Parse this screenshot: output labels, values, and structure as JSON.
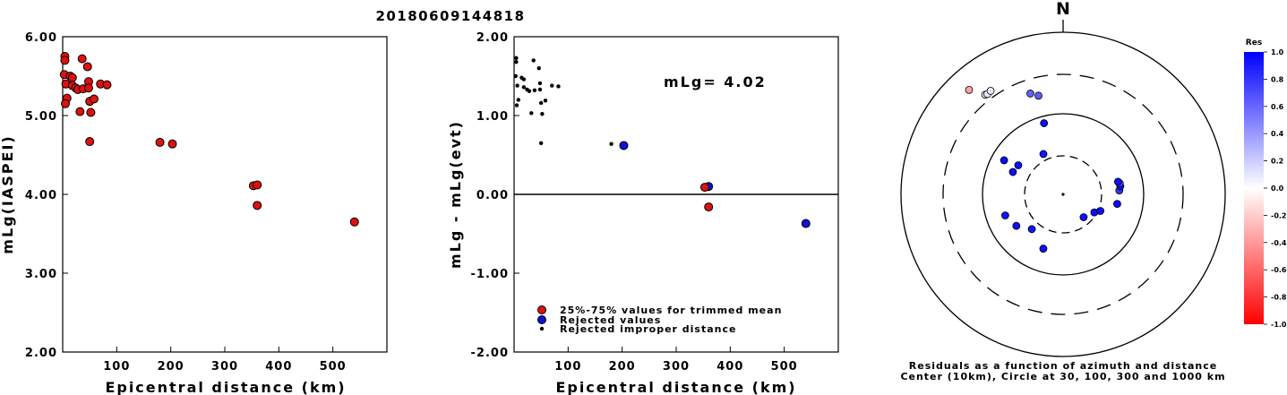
{
  "title": "20180609144818",
  "colors": {
    "trimmed": "#dd1111",
    "rejected": "#1010dd",
    "improper": "#000000"
  },
  "chart_data": [
    {
      "id": "left",
      "type": "scatter",
      "xlabel": "Epicentral distance (km)",
      "ylabel": "mLg(IASPEI)",
      "xlim": [
        0,
        600
      ],
      "ylim": [
        2.0,
        6.0
      ],
      "xticks": [
        "100",
        "200",
        "300",
        "400",
        "500"
      ],
      "yticks": [
        "2.00",
        "3.00",
        "4.00",
        "5.00",
        "6.00"
      ],
      "points": [
        {
          "x": 4,
          "y": 5.75
        },
        {
          "x": 4,
          "y": 5.7
        },
        {
          "x": 3,
          "y": 5.52
        },
        {
          "x": 6,
          "y": 5.4
        },
        {
          "x": 8,
          "y": 5.22
        },
        {
          "x": 5,
          "y": 5.15
        },
        {
          "x": 14,
          "y": 5.5
        },
        {
          "x": 18,
          "y": 5.48
        },
        {
          "x": 18,
          "y": 5.38
        },
        {
          "x": 24,
          "y": 5.35
        },
        {
          "x": 28,
          "y": 5.33
        },
        {
          "x": 36,
          "y": 5.72
        },
        {
          "x": 38,
          "y": 5.34
        },
        {
          "x": 32,
          "y": 5.05
        },
        {
          "x": 46,
          "y": 5.62
        },
        {
          "x": 48,
          "y": 5.43
        },
        {
          "x": 48,
          "y": 5.35
        },
        {
          "x": 50,
          "y": 5.18
        },
        {
          "x": 52,
          "y": 5.04
        },
        {
          "x": 58,
          "y": 5.21
        },
        {
          "x": 70,
          "y": 5.4
        },
        {
          "x": 82,
          "y": 5.39
        },
        {
          "x": 50,
          "y": 4.67
        },
        {
          "x": 180,
          "y": 4.66
        },
        {
          "x": 203,
          "y": 4.64
        },
        {
          "x": 353,
          "y": 4.11
        },
        {
          "x": 360,
          "y": 4.12
        },
        {
          "x": 360,
          "y": 3.86
        },
        {
          "x": 540,
          "y": 3.65
        }
      ]
    },
    {
      "id": "middle",
      "type": "scatter",
      "xlabel": "Epicentral distance (km)",
      "ylabel": "mLg - mLg(evt)",
      "xlim": [
        0,
        600
      ],
      "ylim": [
        -2.0,
        2.0
      ],
      "xticks": [
        "100",
        "200",
        "300",
        "400",
        "500"
      ],
      "yticks": [
        "-2.00",
        "-1.00",
        "0.00",
        "1.00",
        "2.00"
      ],
      "annotation": "mLg= 4.02",
      "legend": [
        {
          "label": "25%-75% values for trimmed mean",
          "kind": "trimmed"
        },
        {
          "label": "Rejected values",
          "kind": "rejected"
        },
        {
          "label": "Rejected improper distance",
          "kind": "improper"
        }
      ],
      "series": [
        {
          "kind": "improper",
          "points": [
            {
              "x": 4,
              "y": 1.73
            },
            {
              "x": 4,
              "y": 1.68
            },
            {
              "x": 3,
              "y": 1.5
            },
            {
              "x": 6,
              "y": 1.38
            },
            {
              "x": 8,
              "y": 1.2
            },
            {
              "x": 5,
              "y": 1.13
            },
            {
              "x": 14,
              "y": 1.48
            },
            {
              "x": 18,
              "y": 1.46
            },
            {
              "x": 18,
              "y": 1.36
            },
            {
              "x": 24,
              "y": 1.33
            },
            {
              "x": 28,
              "y": 1.31
            },
            {
              "x": 36,
              "y": 1.7
            },
            {
              "x": 38,
              "y": 1.32
            },
            {
              "x": 32,
              "y": 1.03
            },
            {
              "x": 46,
              "y": 1.6
            },
            {
              "x": 48,
              "y": 1.41
            },
            {
              "x": 48,
              "y": 1.33
            },
            {
              "x": 50,
              "y": 1.16
            },
            {
              "x": 52,
              "y": 1.02
            },
            {
              "x": 58,
              "y": 1.19
            },
            {
              "x": 70,
              "y": 1.38
            },
            {
              "x": 82,
              "y": 1.37
            },
            {
              "x": 50,
              "y": 0.65
            },
            {
              "x": 180,
              "y": 0.64
            }
          ]
        },
        {
          "kind": "rejected",
          "points": [
            {
              "x": 203,
              "y": 0.62
            },
            {
              "x": 360,
              "y": 0.1
            },
            {
              "x": 540,
              "y": -0.37
            }
          ]
        },
        {
          "kind": "trimmed",
          "points": [
            {
              "x": 353,
              "y": 0.09
            },
            {
              "x": 360,
              "y": -0.16
            }
          ]
        }
      ]
    },
    {
      "id": "polar",
      "type": "scatter",
      "north_label": "N",
      "caption": [
        "Residuals as a function of azimuth and distance",
        "Center (10km), Circle at 30, 100, 300 and 1000 km"
      ],
      "colorbar": {
        "title": "Res",
        "ticks": [
          "1.0",
          "0.8",
          "0.6",
          "0.4",
          "0.2",
          "0.0",
          "-0.2",
          "-0.4",
          "-0.6",
          "-0.8",
          "-1.0"
        ]
      },
      "points": [
        {
          "az": 318,
          "dist": 540,
          "res": -0.37
        },
        {
          "az": 322,
          "dist": 360,
          "res": -0.16
        },
        {
          "az": 323,
          "dist": 353,
          "res": 0.09
        },
        {
          "az": 325,
          "dist": 360,
          "res": 0.1
        },
        {
          "az": 342,
          "dist": 203,
          "res": 0.62
        },
        {
          "az": 346,
          "dist": 180,
          "res": 0.64
        },
        {
          "az": 345,
          "dist": 82,
          "res": 0.95
        },
        {
          "az": 334,
          "dist": 36,
          "res": 0.92
        },
        {
          "az": 300,
          "dist": 70,
          "res": 0.96
        },
        {
          "az": 294,
          "dist": 48,
          "res": 0.94
        },
        {
          "az": 303,
          "dist": 46,
          "res": 0.95
        },
        {
          "az": 250,
          "dist": 58,
          "res": 0.93
        },
        {
          "az": 236,
          "dist": 50,
          "res": 0.94
        },
        {
          "az": 222,
          "dist": 38,
          "res": 0.93
        },
        {
          "az": 200,
          "dist": 52,
          "res": 0.95
        },
        {
          "az": 138,
          "dist": 24,
          "res": 0.94
        },
        {
          "az": 120,
          "dist": 28,
          "res": 0.95
        },
        {
          "az": 114,
          "dist": 32,
          "res": 0.95
        },
        {
          "az": 100,
          "dist": 48,
          "res": 0.96
        },
        {
          "az": 86,
          "dist": 50,
          "res": 0.8
        },
        {
          "az": 82,
          "dist": 52,
          "res": 0.94
        },
        {
          "az": 79,
          "dist": 52,
          "res": 0.72
        },
        {
          "az": 77,
          "dist": 50,
          "res": 0.95
        }
      ]
    }
  ]
}
